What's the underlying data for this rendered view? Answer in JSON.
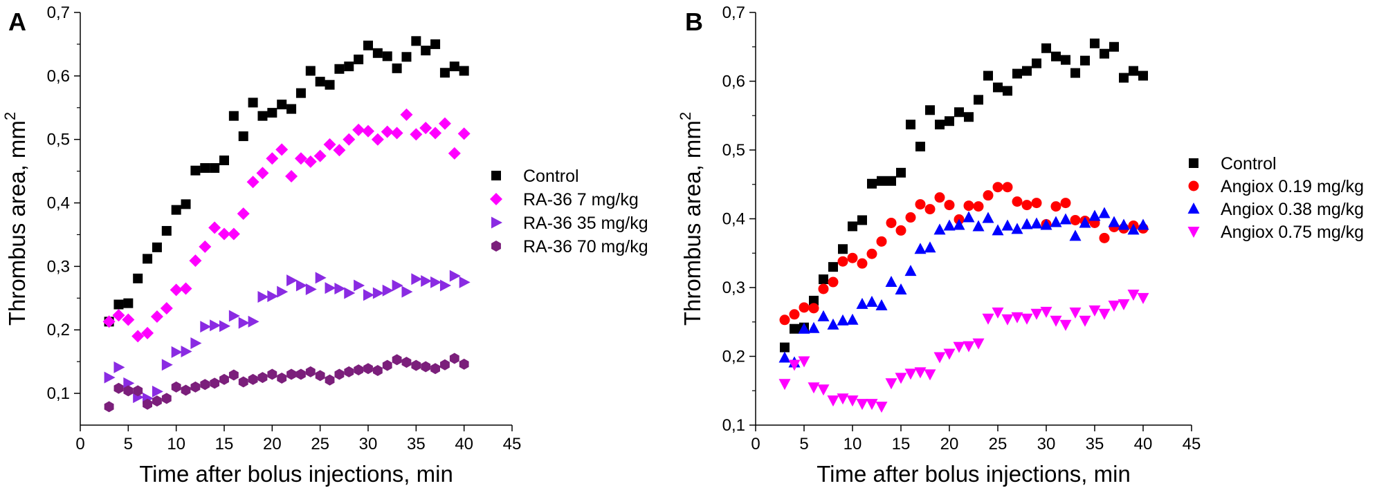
{
  "figure": {
    "panels": [
      "A",
      "B"
    ]
  },
  "chart_data": [
    {
      "panel_label": "A",
      "type": "scatter",
      "title": "",
      "xlabel": "Time after bolus injections, min",
      "ylabel": "Thrombus area, mm²",
      "ylabel_base": "Thrombus area, mm",
      "ylabel_sup": "2",
      "xlim": [
        0,
        45
      ],
      "ylim": [
        0.05,
        0.7
      ],
      "xticks": [
        0,
        5,
        10,
        15,
        20,
        25,
        30,
        35,
        40,
        45
      ],
      "xtick_labels": [
        "0",
        "5",
        "10",
        "15",
        "20",
        "25",
        "30",
        "35",
        "40",
        "45"
      ],
      "yticks": [
        0.1,
        0.2,
        0.3,
        0.4,
        0.5,
        0.6,
        0.7
      ],
      "ytick_labels": [
        "0,1",
        "0,2",
        "0,3",
        "0,4",
        "0,5",
        "0,6",
        "0,7"
      ],
      "legend_position": "right",
      "grid": false,
      "series": [
        {
          "name": "Control",
          "marker": "square",
          "color": "#000000",
          "x": [
            3,
            4,
            5,
            6,
            7,
            8,
            9,
            10,
            11,
            12,
            13,
            14,
            15,
            16,
            17,
            18,
            19,
            20,
            21,
            22,
            23,
            24,
            25,
            26,
            27,
            28,
            29,
            30,
            31,
            32,
            33,
            34,
            35,
            36,
            37,
            38,
            39,
            40
          ],
          "y": [
            0.213,
            0.24,
            0.242,
            0.281,
            0.312,
            0.33,
            0.356,
            0.389,
            0.398,
            0.451,
            0.455,
            0.455,
            0.467,
            0.537,
            0.505,
            0.558,
            0.537,
            0.542,
            0.555,
            0.548,
            0.573,
            0.608,
            0.591,
            0.586,
            0.611,
            0.615,
            0.626,
            0.648,
            0.636,
            0.631,
            0.612,
            0.63,
            0.655,
            0.64,
            0.65,
            0.605,
            0.615,
            0.608
          ]
        },
        {
          "name": "RA-36 7 mg/kg",
          "marker": "diamond",
          "color": "#FF00FF",
          "x": [
            3,
            4,
            5,
            6,
            7,
            8,
            9,
            10,
            11,
            12,
            13,
            14,
            15,
            16,
            17,
            18,
            19,
            20,
            21,
            22,
            23,
            24,
            25,
            26,
            27,
            28,
            29,
            30,
            31,
            32,
            33,
            34,
            35,
            36,
            37,
            38,
            39,
            40
          ],
          "y": [
            0.213,
            0.223,
            0.216,
            0.19,
            0.195,
            0.221,
            0.234,
            0.263,
            0.265,
            0.309,
            0.331,
            0.361,
            0.351,
            0.351,
            0.383,
            0.433,
            0.447,
            0.47,
            0.484,
            0.442,
            0.47,
            0.465,
            0.474,
            0.492,
            0.483,
            0.5,
            0.515,
            0.513,
            0.5,
            0.512,
            0.51,
            0.539,
            0.508,
            0.518,
            0.51,
            0.525,
            0.478,
            0.509
          ]
        },
        {
          "name": "RA-36 35 mg/kg",
          "marker": "triangle-right",
          "color": "#8A2BE2",
          "x": [
            3,
            4,
            5,
            6,
            7,
            8,
            9,
            10,
            11,
            12,
            13,
            14,
            15,
            16,
            17,
            18,
            19,
            20,
            21,
            22,
            23,
            24,
            25,
            26,
            27,
            28,
            29,
            30,
            31,
            32,
            33,
            34,
            35,
            36,
            37,
            38,
            39,
            40
          ],
          "y": [
            0.125,
            0.141,
            0.116,
            0.094,
            0.092,
            0.103,
            0.145,
            0.165,
            0.166,
            0.179,
            0.205,
            0.207,
            0.206,
            0.222,
            0.211,
            0.213,
            0.252,
            0.253,
            0.26,
            0.278,
            0.27,
            0.264,
            0.282,
            0.266,
            0.265,
            0.258,
            0.27,
            0.255,
            0.258,
            0.262,
            0.27,
            0.26,
            0.28,
            0.277,
            0.275,
            0.27,
            0.285,
            0.275
          ]
        },
        {
          "name": "RA-36 70 mg/kg",
          "marker": "hexagon",
          "color": "#7B1F7B",
          "x": [
            3,
            4,
            5,
            6,
            7,
            8,
            9,
            10,
            11,
            12,
            13,
            14,
            15,
            16,
            17,
            18,
            19,
            20,
            21,
            22,
            23,
            24,
            25,
            26,
            27,
            28,
            29,
            30,
            31,
            32,
            33,
            34,
            35,
            36,
            37,
            38,
            39,
            40
          ],
          "y": [
            0.079,
            0.108,
            0.104,
            0.104,
            0.083,
            0.088,
            0.092,
            0.11,
            0.105,
            0.11,
            0.114,
            0.116,
            0.122,
            0.129,
            0.118,
            0.122,
            0.125,
            0.13,
            0.124,
            0.13,
            0.13,
            0.134,
            0.128,
            0.121,
            0.13,
            0.134,
            0.137,
            0.139,
            0.136,
            0.144,
            0.153,
            0.149,
            0.144,
            0.142,
            0.139,
            0.145,
            0.155,
            0.146
          ]
        }
      ]
    },
    {
      "panel_label": "B",
      "type": "scatter",
      "title": "",
      "xlabel": "Time after bolus injections, min",
      "ylabel": "Thrombus area, mm²",
      "ylabel_base": "Thrombus area, mm",
      "ylabel_sup": "2",
      "xlim": [
        0,
        45
      ],
      "ylim": [
        0.1,
        0.7
      ],
      "xticks": [
        0,
        5,
        10,
        15,
        20,
        25,
        30,
        35,
        40,
        45
      ],
      "xtick_labels": [
        "0",
        "5",
        "10",
        "15",
        "20",
        "25",
        "30",
        "35",
        "40",
        "45"
      ],
      "yticks": [
        0.1,
        0.2,
        0.3,
        0.4,
        0.5,
        0.6,
        0.7
      ],
      "ytick_labels": [
        "0,1",
        "0,2",
        "0,3",
        "0,4",
        "0,5",
        "0,6",
        "0,7"
      ],
      "legend_position": "right",
      "grid": false,
      "series": [
        {
          "name": "Control",
          "marker": "square",
          "color": "#000000",
          "x": [
            3,
            4,
            5,
            6,
            7,
            8,
            9,
            10,
            11,
            12,
            13,
            14,
            15,
            16,
            17,
            18,
            19,
            20,
            21,
            22,
            23,
            24,
            25,
            26,
            27,
            28,
            29,
            30,
            31,
            32,
            33,
            34,
            35,
            36,
            37,
            38,
            39,
            40
          ],
          "y": [
            0.213,
            0.24,
            0.242,
            0.281,
            0.312,
            0.33,
            0.356,
            0.389,
            0.398,
            0.451,
            0.455,
            0.455,
            0.467,
            0.537,
            0.505,
            0.558,
            0.537,
            0.542,
            0.555,
            0.548,
            0.573,
            0.608,
            0.591,
            0.586,
            0.611,
            0.615,
            0.626,
            0.648,
            0.636,
            0.631,
            0.612,
            0.63,
            0.655,
            0.64,
            0.65,
            0.605,
            0.615,
            0.608
          ]
        },
        {
          "name": "Angiox 0.19 mg/kg",
          "marker": "circle",
          "color": "#FF0000",
          "x": [
            3,
            4,
            5,
            6,
            7,
            8,
            9,
            10,
            11,
            12,
            13,
            14,
            15,
            16,
            17,
            18,
            19,
            20,
            21,
            22,
            23,
            24,
            25,
            26,
            27,
            28,
            29,
            30,
            31,
            32,
            33,
            34,
            35,
            36,
            37,
            38,
            39,
            40
          ],
          "y": [
            0.253,
            0.261,
            0.271,
            0.27,
            0.298,
            0.308,
            0.338,
            0.343,
            0.335,
            0.349,
            0.367,
            0.394,
            0.383,
            0.402,
            0.421,
            0.414,
            0.431,
            0.42,
            0.399,
            0.419,
            0.418,
            0.434,
            0.446,
            0.446,
            0.425,
            0.42,
            0.423,
            0.392,
            0.418,
            0.423,
            0.398,
            0.397,
            0.394,
            0.372,
            0.388,
            0.386,
            0.39,
            0.386
          ]
        },
        {
          "name": "Angiox 0.38 mg/kg",
          "marker": "triangle-up",
          "color": "#0000FF",
          "x": [
            3,
            4,
            5,
            6,
            7,
            8,
            9,
            10,
            11,
            12,
            13,
            14,
            15,
            16,
            17,
            18,
            19,
            20,
            21,
            22,
            23,
            24,
            25,
            26,
            27,
            28,
            29,
            30,
            31,
            32,
            33,
            34,
            35,
            36,
            37,
            38,
            39,
            40
          ],
          "y": [
            0.198,
            0.191,
            0.24,
            0.241,
            0.258,
            0.246,
            0.252,
            0.253,
            0.276,
            0.279,
            0.274,
            0.308,
            0.297,
            0.324,
            0.356,
            0.358,
            0.384,
            0.39,
            0.391,
            0.402,
            0.389,
            0.401,
            0.383,
            0.39,
            0.385,
            0.392,
            0.393,
            0.391,
            0.395,
            0.399,
            0.375,
            0.394,
            0.404,
            0.408,
            0.395,
            0.391,
            0.384,
            0.391
          ]
        },
        {
          "name": "Angiox 0.75 mg/kg",
          "marker": "triangle-down",
          "color": "#FF00FF",
          "x": [
            3,
            4,
            5,
            6,
            7,
            8,
            9,
            10,
            11,
            12,
            13,
            14,
            15,
            16,
            17,
            18,
            19,
            20,
            21,
            22,
            23,
            24,
            25,
            26,
            27,
            28,
            29,
            30,
            31,
            32,
            33,
            34,
            35,
            36,
            37,
            38,
            39,
            40
          ],
          "y": [
            0.16,
            0.188,
            0.193,
            0.155,
            0.152,
            0.136,
            0.139,
            0.136,
            0.131,
            0.131,
            0.127,
            0.161,
            0.169,
            0.175,
            0.177,
            0.174,
            0.199,
            0.204,
            0.214,
            0.215,
            0.219,
            0.255,
            0.264,
            0.254,
            0.257,
            0.255,
            0.262,
            0.265,
            0.252,
            0.246,
            0.264,
            0.252,
            0.267,
            0.262,
            0.274,
            0.276,
            0.29,
            0.285
          ]
        }
      ]
    }
  ]
}
